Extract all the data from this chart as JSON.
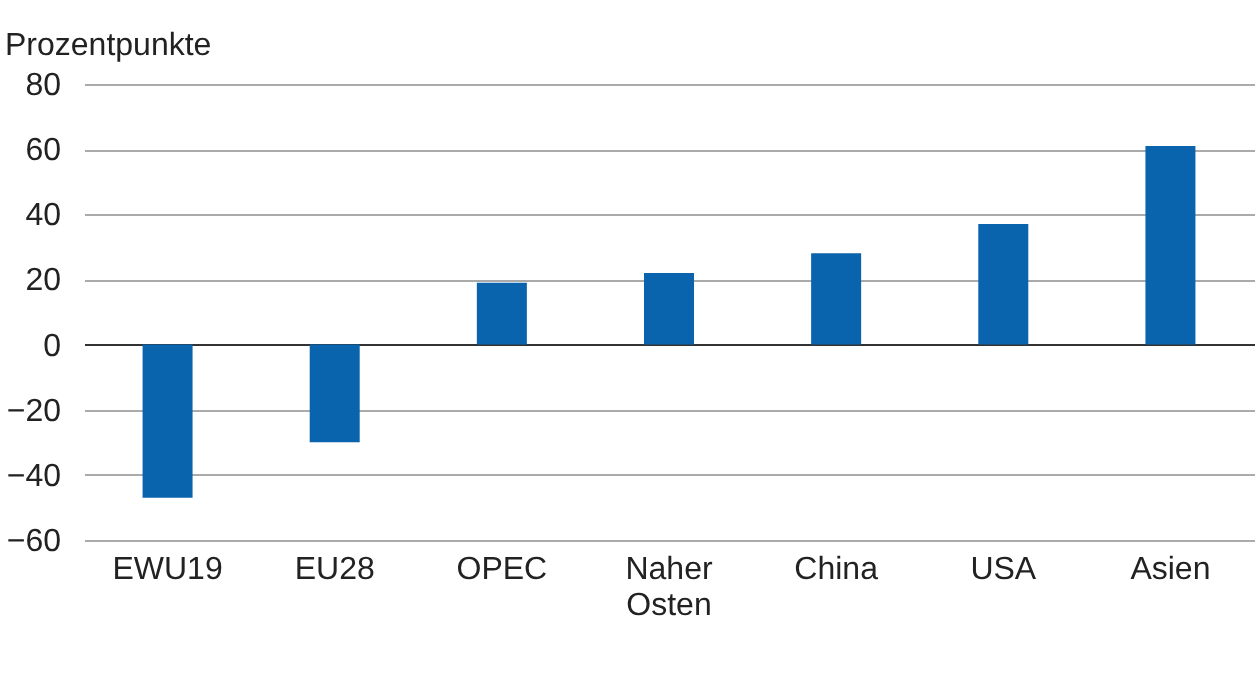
{
  "chart_data": {
    "type": "bar",
    "ylabel": "Prozentpunkte",
    "categories": [
      "EWU19",
      "EU28",
      "OPEC",
      "Naher Osten",
      "China",
      "USA",
      "Asien"
    ],
    "values": [
      -47,
      -30,
      19,
      22,
      28,
      37,
      61
    ],
    "color": "#0a64ad",
    "ylim": [
      -60,
      80
    ],
    "yticks": [
      -60,
      -40,
      -20,
      0,
      20,
      40,
      60,
      80
    ],
    "grid": "y"
  }
}
